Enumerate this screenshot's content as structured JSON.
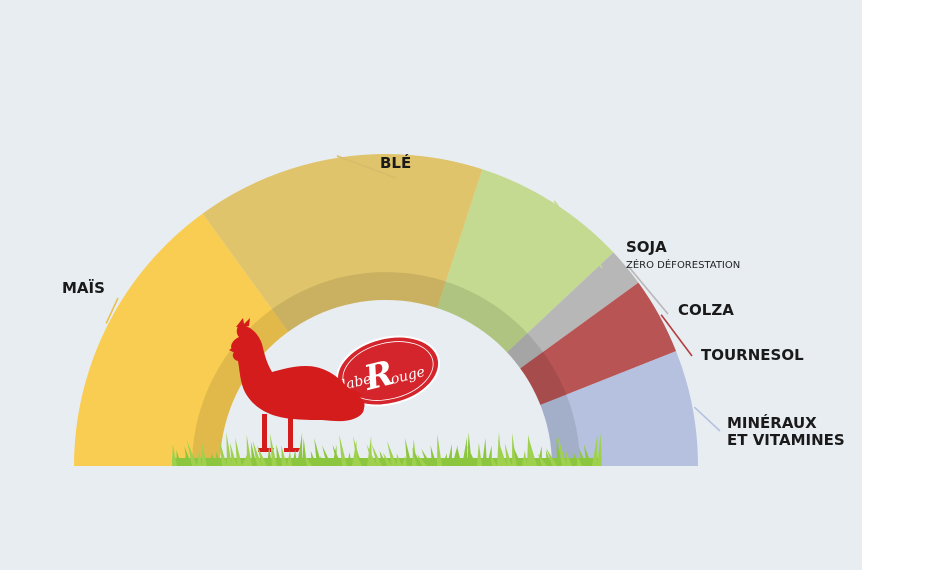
{
  "chart_data": {
    "type": "pie",
    "shape": "semicircle-donut",
    "slices": [
      {
        "label": "MAÏS",
        "value": 30,
        "color": "#f9cd52"
      },
      {
        "label": "BLÉ",
        "value": 30,
        "color": "#e0c46c"
      },
      {
        "label": "SOJA",
        "sublabel": "ZÉRO DÉFORESTATION",
        "value": 16,
        "color": "#c3da90"
      },
      {
        "label": "COLZA",
        "value": 4,
        "color": "#b7b7b7"
      },
      {
        "label": "TOURNESOL",
        "value": 8,
        "color": "#b85454"
      },
      {
        "label": "MINÉRAUX",
        "label_line2": "ET VITAMINES",
        "value": 12,
        "color": "#b5c1de"
      }
    ],
    "leader_colors": [
      "#e8c04a",
      "#d9bc6a",
      "#c3da90",
      "#b7b7b7",
      "#b43e3e",
      "#b5c1de"
    ]
  },
  "logo": {
    "word1": "label",
    "letter": "R",
    "word2": "ouge",
    "color": "#d3252b"
  },
  "illustration": {
    "hen": "hen-silhouette-icon",
    "hen_color": "#d41c1c",
    "grass": "grass-icon",
    "grass_color": "#8cc63f"
  }
}
